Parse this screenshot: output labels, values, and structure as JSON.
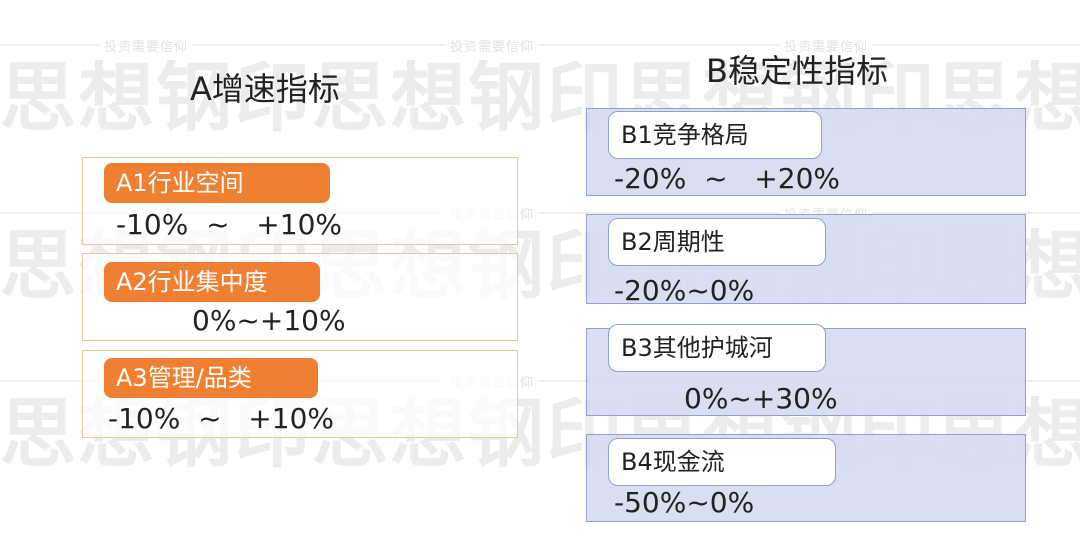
{
  "watermark": {
    "big": "思想钢印思想钢印思想钢印思想钢印",
    "small": "投资需要信仰"
  },
  "group_a": {
    "title": "A增速指标",
    "items": [
      {
        "label": "A1行业空间",
        "range": "-10%  ~   +10%"
      },
      {
        "label": "A2行业集中度",
        "range": "0%~+10%"
      },
      {
        "label": "A3管理/品类",
        "range": "-10%  ~   +10%"
      }
    ]
  },
  "group_b": {
    "title": "B稳定性指标",
    "items": [
      {
        "label": "B1竞争格局",
        "range": "-20%  ~   +20%"
      },
      {
        "label": "B2周期性",
        "range": "-20%~0%"
      },
      {
        "label": "B3其他护城河",
        "range": "0%~+30%"
      },
      {
        "label": "B4现金流",
        "range": "-50%~0%"
      }
    ]
  },
  "colors": {
    "a_pill": "#ef7f31",
    "a_border": "#e8c9a0",
    "b_fill": "#d6dcf0",
    "b_border": "#8f9fcf"
  }
}
